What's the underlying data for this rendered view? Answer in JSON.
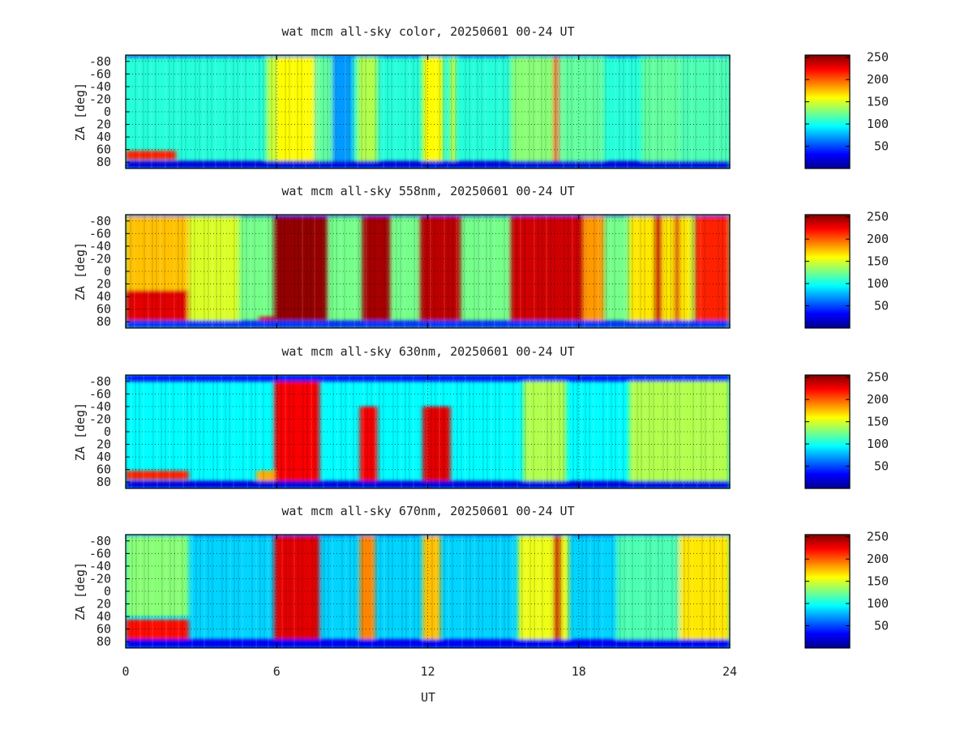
{
  "chart_data": [
    {
      "type": "heatmap",
      "title": "wat mcm all-sky color, 20250601 00-24 UT",
      "ylabel": "ZA [deg]",
      "yticks": [
        "-80",
        "-60",
        "-40",
        "-20",
        "0",
        "20",
        "40",
        "60",
        "80"
      ],
      "ylim": [
        -90,
        90
      ],
      "xlim": [
        0,
        24
      ],
      "colorbar": {
        "ticks": [
          "50",
          "100",
          "150",
          "200",
          "250"
        ],
        "range": [
          0,
          255
        ]
      },
      "background": 105,
      "bands": [
        {
          "x": [
            0,
            2.0
          ],
          "y": [
            62,
            76
          ],
          "value": 215
        },
        {
          "x": [
            5.6,
            6.0
          ],
          "y": [
            -88,
            85
          ],
          "value": 145
        },
        {
          "x": [
            6.0,
            7.5
          ],
          "y": [
            -88,
            85
          ],
          "value": 160
        },
        {
          "x": [
            7.5,
            8.2
          ],
          "y": [
            -88,
            85
          ],
          "value": 120
        },
        {
          "x": [
            8.2,
            9.0
          ],
          "y": [
            -88,
            85
          ],
          "value": 70
        },
        {
          "x": [
            9.2,
            10.0
          ],
          "y": [
            -88,
            85
          ],
          "value": 140
        },
        {
          "x": [
            11.8,
            12.6
          ],
          "y": [
            -88,
            85
          ],
          "value": 160
        },
        {
          "x": [
            12.9,
            13.1
          ],
          "y": [
            -88,
            85
          ],
          "value": 150
        },
        {
          "x": [
            15.3,
            17.0
          ],
          "y": [
            -88,
            85
          ],
          "value": 130
        },
        {
          "x": [
            17.0,
            17.2
          ],
          "y": [
            -88,
            85
          ],
          "value": 215
        },
        {
          "x": [
            17.2,
            19.0
          ],
          "y": [
            -88,
            85
          ],
          "value": 120
        },
        {
          "x": [
            20.5,
            22.0
          ],
          "y": [
            -88,
            85
          ],
          "value": 120
        },
        {
          "x": [
            22.0,
            24.0
          ],
          "y": [
            -88,
            85
          ],
          "value": 115
        },
        {
          "x": [
            0,
            24
          ],
          "y": [
            -90,
            -87
          ],
          "value": 35
        },
        {
          "x": [
            0,
            24
          ],
          "y": [
            78,
            90
          ],
          "value": 25
        }
      ]
    },
    {
      "type": "heatmap",
      "title": "wat mcm all-sky 558nm, 20250601 00-24 UT",
      "ylabel": "ZA [deg]",
      "yticks": [
        "-80",
        "-60",
        "-40",
        "-20",
        "0",
        "20",
        "40",
        "60",
        "80"
      ],
      "ylim": [
        -90,
        90
      ],
      "xlim": [
        0,
        24
      ],
      "colorbar": {
        "ticks": [
          "50",
          "100",
          "150",
          "200",
          "250"
        ],
        "range": [
          0,
          255
        ]
      },
      "background": 125,
      "bands": [
        {
          "x": [
            0,
            2.5
          ],
          "y": [
            -88,
            30
          ],
          "value": 175
        },
        {
          "x": [
            0,
            2.5
          ],
          "y": [
            30,
            78
          ],
          "value": 230
        },
        {
          "x": [
            2.5,
            4.5
          ],
          "y": [
            -88,
            85
          ],
          "value": 150
        },
        {
          "x": [
            5.3,
            5.9
          ],
          "y": [
            72,
            78
          ],
          "value": 235
        },
        {
          "x": [
            5.9,
            8.0
          ],
          "y": [
            -88,
            78
          ],
          "value": 250
        },
        {
          "x": [
            9.4,
            10.5
          ],
          "y": [
            -88,
            78
          ],
          "value": 245
        },
        {
          "x": [
            11.7,
            13.3
          ],
          "y": [
            -88,
            78
          ],
          "value": 240
        },
        {
          "x": [
            15.3,
            18.2
          ],
          "y": [
            -88,
            78
          ],
          "value": 235
        },
        {
          "x": [
            18.2,
            19.0
          ],
          "y": [
            -88,
            78
          ],
          "value": 185
        },
        {
          "x": [
            20.0,
            22.5
          ],
          "y": [
            -88,
            85
          ],
          "value": 165
        },
        {
          "x": [
            21.0,
            21.3
          ],
          "y": [
            -88,
            78
          ],
          "value": 235
        },
        {
          "x": [
            21.8,
            22.0
          ],
          "y": [
            -88,
            78
          ],
          "value": 235
        },
        {
          "x": [
            22.6,
            24.0
          ],
          "y": [
            -88,
            78
          ],
          "value": 215
        },
        {
          "x": [
            0,
            24
          ],
          "y": [
            -90,
            -87
          ],
          "value": 40
        },
        {
          "x": [
            0,
            24
          ],
          "y": [
            78,
            90
          ],
          "value": 45
        }
      ]
    },
    {
      "type": "heatmap",
      "title": "wat mcm all-sky 630nm, 20250601 00-24 UT",
      "ylabel": "ZA [deg]",
      "yticks": [
        "-80",
        "-60",
        "-40",
        "-20",
        "0",
        "20",
        "40",
        "60",
        "80"
      ],
      "ylim": [
        -90,
        90
      ],
      "xlim": [
        0,
        24
      ],
      "colorbar": {
        "ticks": [
          "50",
          "100",
          "150",
          "200",
          "250"
        ],
        "range": [
          0,
          255
        ]
      },
      "background": 95,
      "bands": [
        {
          "x": [
            0,
            2.5
          ],
          "y": [
            62,
            76
          ],
          "value": 215
        },
        {
          "x": [
            5.2,
            5.9
          ],
          "y": [
            62,
            78
          ],
          "value": 180
        },
        {
          "x": [
            5.9,
            7.7
          ],
          "y": [
            -80,
            78
          ],
          "value": 225
        },
        {
          "x": [
            9.3,
            10.0
          ],
          "y": [
            -40,
            78
          ],
          "value": 225
        },
        {
          "x": [
            11.8,
            12.9
          ],
          "y": [
            -40,
            78
          ],
          "value": 230
        },
        {
          "x": [
            15.8,
            17.5
          ],
          "y": [
            -88,
            78
          ],
          "value": 140
        },
        {
          "x": [
            20.0,
            24.0
          ],
          "y": [
            -88,
            78
          ],
          "value": 140
        },
        {
          "x": [
            0,
            24
          ],
          "y": [
            -90,
            -80
          ],
          "value": 35
        },
        {
          "x": [
            0,
            24
          ],
          "y": [
            78,
            90
          ],
          "value": 25
        }
      ]
    },
    {
      "type": "heatmap",
      "title": "wat mcm all-sky 670nm, 20250601 00-24 UT",
      "ylabel": "ZA [deg]",
      "yticks": [
        "-80",
        "-60",
        "-40",
        "-20",
        "0",
        "20",
        "40",
        "60",
        "80"
      ],
      "ylim": [
        -90,
        90
      ],
      "xlim": [
        0,
        24
      ],
      "colorbar": {
        "ticks": [
          "50",
          "100",
          "150",
          "200",
          "250"
        ],
        "range": [
          0,
          255
        ]
      },
      "background": 85,
      "bands": [
        {
          "x": [
            0,
            2.5
          ],
          "y": [
            -88,
            40
          ],
          "value": 130
        },
        {
          "x": [
            0,
            2.5
          ],
          "y": [
            45,
            78
          ],
          "value": 220
        },
        {
          "x": [
            5.9,
            7.7
          ],
          "y": [
            -88,
            78
          ],
          "value": 230
        },
        {
          "x": [
            9.3,
            9.9
          ],
          "y": [
            -88,
            78
          ],
          "value": 190
        },
        {
          "x": [
            11.8,
            12.5
          ],
          "y": [
            -88,
            78
          ],
          "value": 175
        },
        {
          "x": [
            15.6,
            17.6
          ],
          "y": [
            -88,
            78
          ],
          "value": 155
        },
        {
          "x": [
            17.0,
            17.3
          ],
          "y": [
            -88,
            78
          ],
          "value": 235
        },
        {
          "x": [
            19.5,
            22.0
          ],
          "y": [
            -88,
            78
          ],
          "value": 115
        },
        {
          "x": [
            22.0,
            24.0
          ],
          "y": [
            -88,
            78
          ],
          "value": 165
        },
        {
          "x": [
            0,
            24
          ],
          "y": [
            -90,
            -88
          ],
          "value": 35
        },
        {
          "x": [
            0,
            24
          ],
          "y": [
            76,
            90
          ],
          "value": 30
        }
      ]
    }
  ],
  "shared_x": {
    "ticks": [
      "0",
      "6",
      "12",
      "18",
      "24"
    ],
    "label": "UT"
  }
}
